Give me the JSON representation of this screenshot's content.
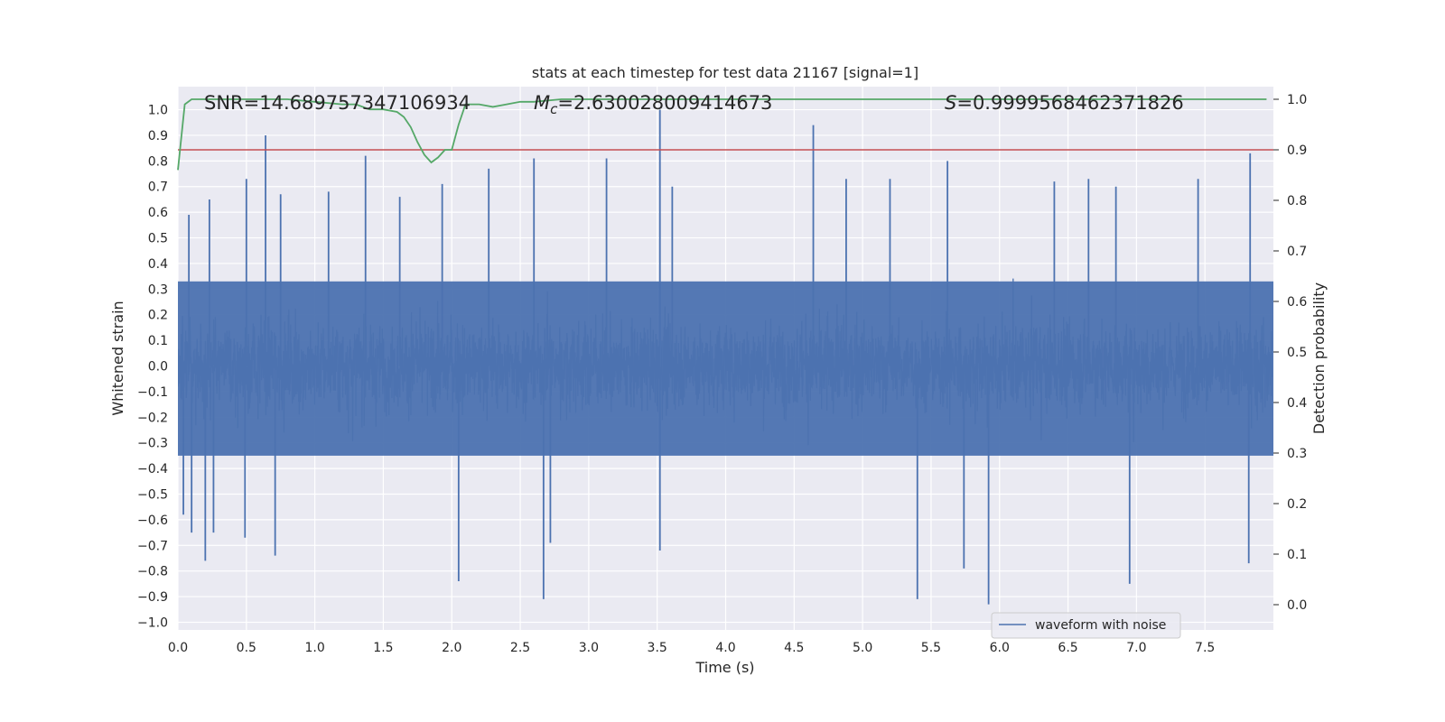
{
  "chart_data": {
    "type": "line",
    "title": "stats at each timestep for test data 21167 [signal=1]",
    "xlabel": "Time (s)",
    "ylabel_left": "Whitened strain",
    "ylabel_right": "Detection probability",
    "xlim": [
      0.0,
      8.0
    ],
    "ylim_left": [
      -1.03,
      1.09
    ],
    "ylim_right": [
      -0.05,
      1.025
    ],
    "x_ticks": [
      "0.0",
      "0.5",
      "1.0",
      "1.5",
      "2.0",
      "2.5",
      "3.0",
      "3.5",
      "4.0",
      "4.5",
      "5.0",
      "5.5",
      "6.0",
      "6.5",
      "7.0",
      "7.5"
    ],
    "y_ticks_left": [
      "1.0",
      "0.9",
      "0.8",
      "0.7",
      "0.6",
      "0.5",
      "0.4",
      "0.3",
      "0.2",
      "0.1",
      "0.0",
      "−0.1",
      "−0.2",
      "−0.3",
      "−0.4",
      "−0.5",
      "−0.6",
      "−0.7",
      "−0.8",
      "−0.9",
      "−1.0"
    ],
    "y_ticks_right": [
      "1.0",
      "0.9",
      "0.8",
      "0.7",
      "0.6",
      "0.5",
      "0.4",
      "0.3",
      "0.2",
      "0.1",
      "0.0"
    ],
    "annotations": {
      "snr": "SNR=14.689757347106934",
      "mc_symbol": "M",
      "mc_sub": "c",
      "mc_value": "=2.630028009414673",
      "s_symbol": "S",
      "s_value": "=0.9999568462371826"
    },
    "legend": {
      "label": "waveform with noise",
      "location": "lower-right"
    },
    "series": [
      {
        "name": "waveform with noise",
        "axis": "left",
        "style": "dense-noise",
        "sample_count": 4096,
        "bulk_amplitude": 0.31,
        "peaks": [
          {
            "t": 0.04,
            "v": -0.58
          },
          {
            "t": 0.08,
            "v": 0.59
          },
          {
            "t": 0.1,
            "v": -0.65
          },
          {
            "t": 0.2,
            "v": -0.76
          },
          {
            "t": 0.23,
            "v": 0.65
          },
          {
            "t": 0.26,
            "v": -0.65
          },
          {
            "t": 0.49,
            "v": -0.67
          },
          {
            "t": 0.5,
            "v": 0.73
          },
          {
            "t": 0.64,
            "v": 0.9
          },
          {
            "t": 0.71,
            "v": -0.74
          },
          {
            "t": 0.75,
            "v": 0.67
          },
          {
            "t": 1.1,
            "v": 0.68
          },
          {
            "t": 1.37,
            "v": 0.82
          },
          {
            "t": 1.62,
            "v": 0.66
          },
          {
            "t": 1.93,
            "v": 0.71
          },
          {
            "t": 2.05,
            "v": -0.84
          },
          {
            "t": 2.27,
            "v": 0.77
          },
          {
            "t": 2.6,
            "v": 0.81
          },
          {
            "t": 2.67,
            "v": -0.91
          },
          {
            "t": 2.72,
            "v": -0.69
          },
          {
            "t": 3.13,
            "v": 0.81
          },
          {
            "t": 3.52,
            "v": 1.0
          },
          {
            "t": 3.52,
            "v": -0.72
          },
          {
            "t": 3.61,
            "v": 0.7
          },
          {
            "t": 4.64,
            "v": 0.94
          },
          {
            "t": 4.88,
            "v": 0.73
          },
          {
            "t": 5.2,
            "v": 0.73
          },
          {
            "t": 5.4,
            "v": -0.91
          },
          {
            "t": 5.62,
            "v": 0.8
          },
          {
            "t": 5.74,
            "v": -0.79
          },
          {
            "t": 5.92,
            "v": -0.93
          },
          {
            "t": 6.4,
            "v": 0.72
          },
          {
            "t": 6.65,
            "v": 0.73
          },
          {
            "t": 6.85,
            "v": 0.7
          },
          {
            "t": 6.95,
            "v": -0.85
          },
          {
            "t": 7.45,
            "v": 0.73
          },
          {
            "t": 7.83,
            "v": 0.83
          },
          {
            "t": 7.82,
            "v": -0.77
          }
        ],
        "color": "#4c72b0"
      },
      {
        "name": "detection probability",
        "axis": "right",
        "color": "#55a868",
        "x": [
          0.0,
          0.05,
          0.1,
          0.2,
          0.5,
          0.8,
          1.0,
          1.2,
          1.3,
          1.4,
          1.5,
          1.6,
          1.65,
          1.7,
          1.75,
          1.8,
          1.85,
          1.9,
          1.95,
          2.0,
          2.05,
          2.1,
          2.15,
          2.2,
          2.3,
          2.4,
          2.5,
          2.6,
          2.8,
          3.0,
          4.0,
          5.0,
          6.0,
          7.0,
          7.95
        ],
        "y": [
          0.86,
          0.99,
          1.0,
          1.0,
          1.0,
          1.0,
          0.995,
          0.99,
          0.99,
          0.98,
          0.98,
          0.975,
          0.965,
          0.945,
          0.915,
          0.89,
          0.875,
          0.885,
          0.9,
          0.9,
          0.95,
          0.99,
          0.99,
          0.99,
          0.985,
          0.99,
          0.995,
          0.995,
          1.0,
          1.0,
          1.0,
          1.0,
          1.0,
          1.0,
          1.0
        ]
      },
      {
        "name": "detection threshold",
        "axis": "right",
        "color": "#c44e52",
        "value": 0.9
      }
    ]
  }
}
